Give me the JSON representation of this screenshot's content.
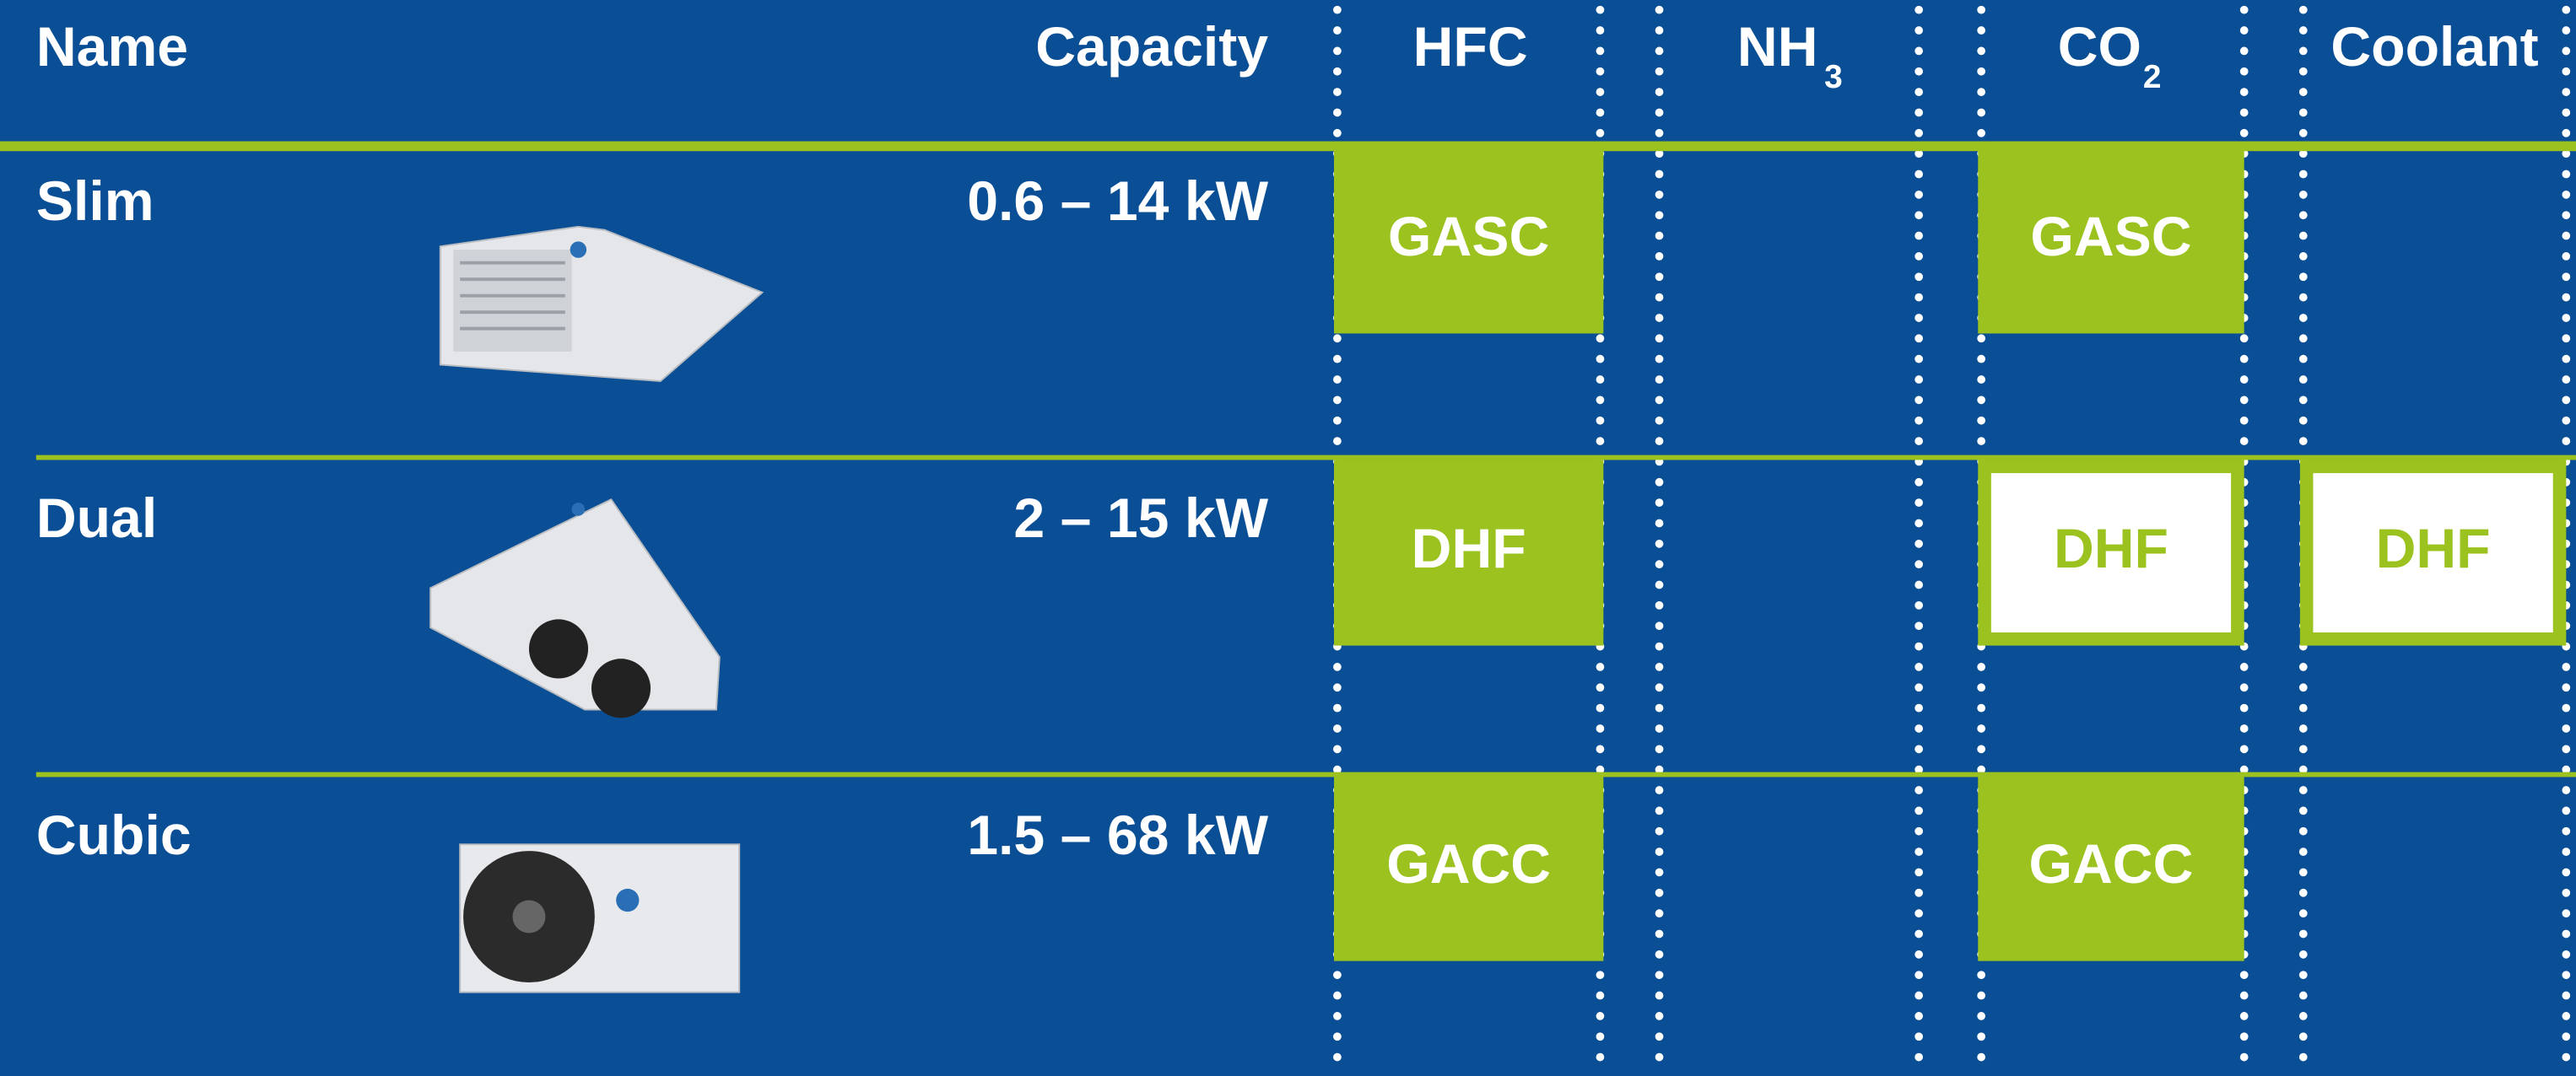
{
  "table": {
    "header": {
      "name": "Name",
      "capacity": "Capacity",
      "hfc": "HFC",
      "nh": "NH",
      "nh_sub": "3",
      "co": "CO",
      "co_sub": "2",
      "coolant": "Coolant"
    },
    "rows": [
      {
        "name": "Slim",
        "capacity": "0.6 – 14 kW",
        "cells": [
          {
            "label": "GASC",
            "style": "filled"
          },
          null,
          {
            "label": "GASC",
            "style": "filled"
          },
          null
        ]
      },
      {
        "name": "Dual",
        "capacity": "2 – 15 kW",
        "cells": [
          {
            "label": "DHF",
            "style": "filled"
          },
          null,
          {
            "label": "DHF",
            "style": "outlined"
          },
          {
            "label": "DHF",
            "style": "outlined"
          }
        ]
      },
      {
        "name": "Cubic",
        "capacity": "1.5 – 68 kW",
        "cells": [
          {
            "label": "GACC",
            "style": "filled"
          },
          null,
          {
            "label": "GACC",
            "style": "filled"
          },
          null
        ]
      }
    ]
  }
}
